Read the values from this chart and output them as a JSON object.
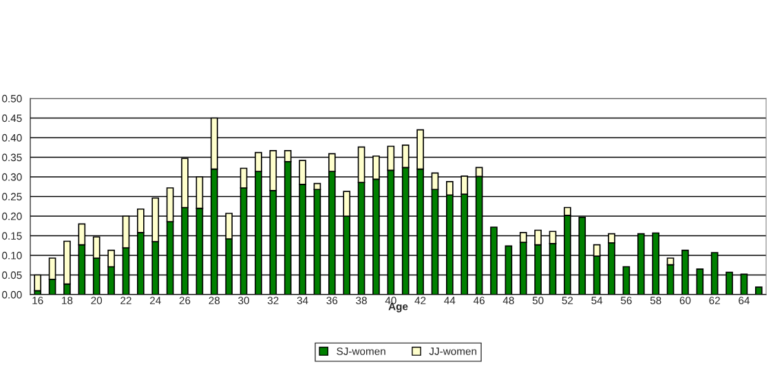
{
  "chart_data": {
    "type": "bar",
    "stacked": true,
    "xlabel": "Age",
    "categories": [
      "16",
      null,
      "18",
      null,
      "20",
      null,
      "22",
      null,
      "24",
      null,
      "26",
      null,
      "28",
      null,
      "30",
      null,
      "32",
      null,
      "34",
      null,
      "36",
      null,
      "38",
      null,
      "40",
      null,
      "42",
      null,
      "44",
      null,
      "46",
      null,
      "48",
      null,
      "50",
      null,
      "52",
      null,
      "54",
      null,
      "56",
      null,
      "58",
      null,
      "60",
      null,
      "62",
      null,
      "64",
      null
    ],
    "series": [
      {
        "name": "SJ-women",
        "color": "#008000",
        "values": [
          0.01,
          0.039,
          0.027,
          0.127,
          0.093,
          0.071,
          0.119,
          0.158,
          0.135,
          0.186,
          0.222,
          0.22,
          0.32,
          0.142,
          0.272,
          0.314,
          0.265,
          0.339,
          0.281,
          0.268,
          0.314,
          0.2,
          0.286,
          0.294,
          0.317,
          0.324,
          0.32,
          0.268,
          0.254,
          0.256,
          0.301,
          0.172,
          0.124,
          0.133,
          0.127,
          0.13,
          0.202,
          0.197,
          0.098,
          0.132,
          0.071,
          0.155,
          0.157,
          0.076,
          0.113,
          0.065,
          0.107,
          0.057,
          0.052,
          0.019
        ]
      },
      {
        "name": "JJ-women",
        "color": "#ffffcc",
        "values": [
          0.04,
          0.054,
          0.109,
          0.053,
          0.054,
          0.042,
          0.081,
          0.06,
          0.111,
          0.086,
          0.125,
          0.08,
          0.13,
          0.065,
          0.05,
          0.048,
          0.102,
          0.028,
          0.061,
          0.015,
          0.045,
          0.063,
          0.09,
          0.059,
          0.061,
          0.057,
          0.1,
          0.042,
          0.034,
          0.046,
          0.023,
          null,
          null,
          0.025,
          0.037,
          0.031,
          0.02,
          null,
          0.029,
          0.023,
          null,
          null,
          null,
          0.017,
          null,
          null,
          null,
          null,
          null,
          null
        ]
      }
    ],
    "ylim": [
      0,
      0.5
    ],
    "yticks": [
      {
        "value": 0,
        "label": "0.00"
      },
      {
        "value": 0.05,
        "label": "0.05"
      },
      {
        "value": 0.1,
        "label": "0.10"
      },
      {
        "value": 0.15,
        "label": "0.15"
      },
      {
        "value": 0.2,
        "label": "0.20"
      },
      {
        "value": 0.25,
        "label": "0.25"
      },
      {
        "value": 0.3,
        "label": "0.30"
      },
      {
        "value": 0.35,
        "label": "0.35"
      },
      {
        "value": 0.4,
        "label": "0.40"
      },
      {
        "value": 0.45,
        "label": "0.45"
      },
      {
        "value": 0.5,
        "label": "0.50"
      }
    ],
    "grid": "y",
    "legend": "bottom"
  }
}
